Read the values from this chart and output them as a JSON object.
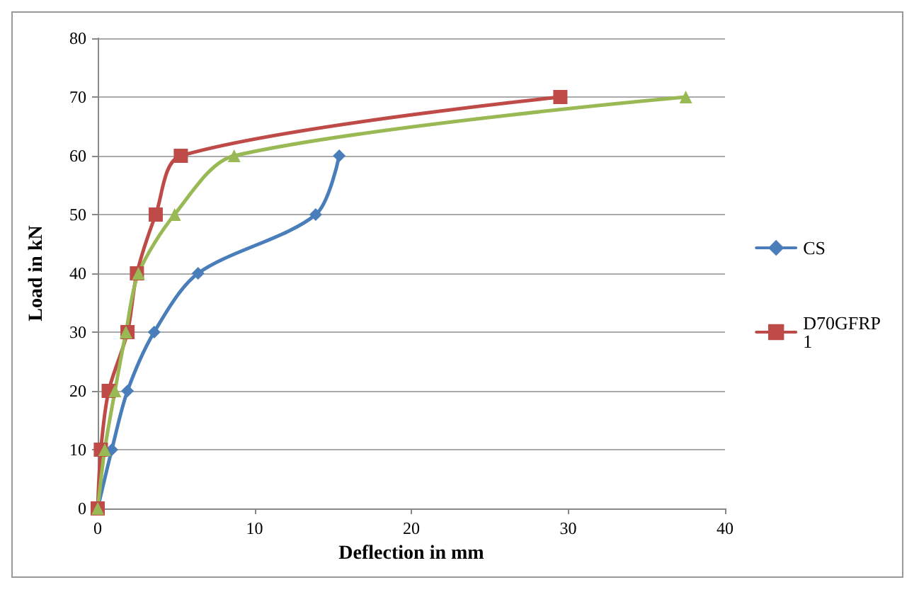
{
  "chart_data": {
    "type": "line",
    "xlabel": "Deflection in mm",
    "ylabel": "Load in kN",
    "xlim": [
      0,
      40
    ],
    "xticks": [
      0,
      10,
      20,
      30,
      40
    ],
    "ylim": [
      0,
      80
    ],
    "yticks": [
      0,
      10,
      20,
      30,
      40,
      50,
      60,
      70,
      80
    ],
    "grid": "y",
    "legend": "right",
    "line_style": "solid",
    "series": [
      {
        "name": "CS",
        "color": "#4a7ebb",
        "marker": "diamond",
        "x": [
          0,
          0.9,
          1.9,
          3.6,
          6.4,
          13.9,
          15.4
        ],
        "values": [
          0,
          10,
          20,
          30,
          40,
          50,
          60
        ]
      },
      {
        "name": "D70GFRP1",
        "color": "#be4b48",
        "marker": "square",
        "x": [
          0,
          0.2,
          0.7,
          1.9,
          2.5,
          3.7,
          5.3,
          29.5
        ],
        "values": [
          0,
          10,
          20,
          30,
          40,
          50,
          60,
          70
        ]
      },
      {
        "color": "#98b954",
        "marker": "triangle",
        "x": [
          0,
          0.45,
          1.1,
          1.8,
          2.6,
          4.9,
          8.7,
          37.5
        ],
        "values": [
          0,
          10,
          20,
          30,
          40,
          50,
          60,
          70
        ]
      }
    ]
  }
}
